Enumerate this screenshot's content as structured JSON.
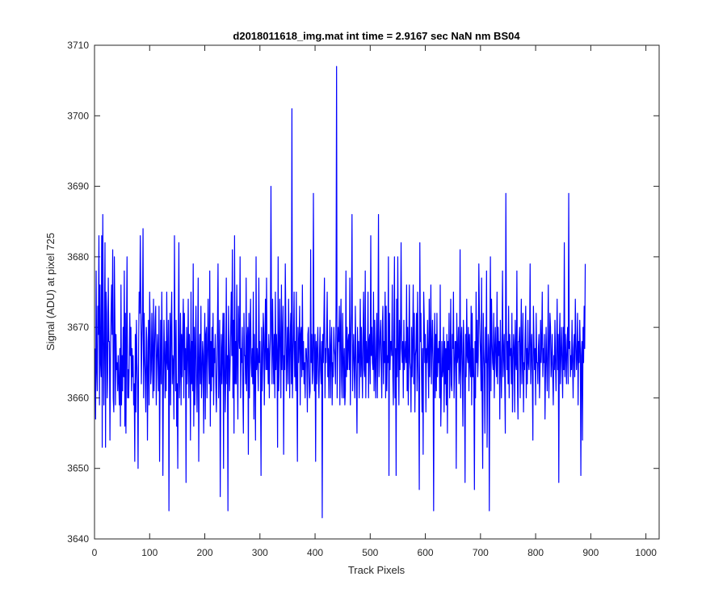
{
  "chart_data": {
    "type": "line",
    "title": "d2018011618_img.mat int time = 2.9167 sec  NaN nm BS04",
    "xlabel": "Track Pixels",
    "ylabel": "Signal (ADU) at pixel 725",
    "xlim": [
      0,
      1024
    ],
    "ylim": [
      3640,
      3710
    ],
    "xticks": [
      0,
      100,
      200,
      300,
      400,
      500,
      600,
      700,
      800,
      900,
      1000
    ],
    "yticks": [
      3640,
      3650,
      3660,
      3670,
      3680,
      3690,
      3700,
      3710
    ],
    "grid": false,
    "legend": "none",
    "line_color": "#0000ff",
    "series": [
      {
        "x_start": 1,
        "x_step": 1,
        "values": [
          3667,
          3657,
          3678,
          3664,
          3661,
          3673,
          3669,
          3683,
          3659,
          3676,
          3665,
          3663,
          3683,
          3653,
          3686,
          3670,
          3659,
          3668,
          3682,
          3653,
          3675,
          3672,
          3660,
          3664,
          3677,
          3668,
          3668,
          3654,
          3666,
          3672,
          3676,
          3669,
          3681,
          3660,
          3658,
          3680,
          3671,
          3659,
          3669,
          3664,
          3665,
          3661,
          3666,
          3662,
          3659,
          3667,
          3656,
          3676,
          3659,
          3666,
          3661,
          3670,
          3663,
          3678,
          3656,
          3672,
          3655,
          3669,
          3680,
          3660,
          3664,
          3660,
          3665,
          3672,
          3666,
          3670,
          3661,
          3667,
          3663,
          3666,
          3659,
          3662,
          3651,
          3669,
          3658,
          3671,
          3665,
          3662,
          3650,
          3667,
          3675,
          3672,
          3683,
          3674,
          3662,
          3668,
          3672,
          3684,
          3660,
          3672,
          3666,
          3663,
          3658,
          3670,
          3668,
          3654,
          3664,
          3671,
          3659,
          3675,
          3670,
          3662,
          3664,
          3672,
          3666,
          3660,
          3674,
          3661,
          3667,
          3671,
          3673,
          3659,
          3665,
          3669,
          3666,
          3661,
          3673,
          3651,
          3663,
          3671,
          3662,
          3675,
          3667,
          3649,
          3663,
          3671,
          3666,
          3660,
          3668,
          3661,
          3675,
          3665,
          3664,
          3671,
          3644,
          3665,
          3672,
          3659,
          3670,
          3675,
          3662,
          3666,
          3665,
          3657,
          3683,
          3668,
          3661,
          3671,
          3656,
          3662,
          3650,
          3668,
          3682,
          3660,
          3664,
          3672,
          3659,
          3669,
          3663,
          3669,
          3674,
          3660,
          3672,
          3664,
          3667,
          3648,
          3670,
          3662,
          3666,
          3674,
          3660,
          3669,
          3666,
          3654,
          3675,
          3662,
          3668,
          3661,
          3679,
          3656,
          3670,
          3659,
          3667,
          3673,
          3662,
          3658,
          3666,
          3677,
          3651,
          3665,
          3669,
          3662,
          3673,
          3660,
          3663,
          3668,
          3666,
          3655,
          3666,
          3672,
          3657,
          3669,
          3670,
          3660,
          3666,
          3674,
          3666,
          3662,
          3678,
          3656,
          3668,
          3661,
          3670,
          3663,
          3672,
          3659,
          3667,
          3665,
          3669,
          3662,
          3658,
          3664,
          3670,
          3679,
          3660,
          3665,
          3671,
          3646,
          3663,
          3669,
          3662,
          3667,
          3672,
          3650,
          3672,
          3666,
          3658,
          3663,
          3677,
          3662,
          3666,
          3644,
          3673,
          3667,
          3661,
          3665,
          3670,
          3675,
          3666,
          3681,
          3660,
          3671,
          3655,
          3683,
          3662,
          3668,
          3662,
          3676,
          3665,
          3657,
          3673,
          3669,
          3667,
          3680,
          3660,
          3667,
          3665,
          3670,
          3661,
          3655,
          3672,
          3666,
          3666,
          3662,
          3677,
          3661,
          3668,
          3670,
          3652,
          3672,
          3660,
          3669,
          3674,
          3665,
          3663,
          3667,
          3662,
          3675,
          3657,
          3669,
          3663,
          3654,
          3680,
          3664,
          3667,
          3665,
          3661,
          3677,
          3665,
          3668,
          3663,
          3649,
          3670,
          3661,
          3665,
          3672,
          3669,
          3659,
          3667,
          3674,
          3664,
          3677,
          3664,
          3667,
          3662,
          3669,
          3660,
          3666,
          3669,
          3690,
          3670,
          3662,
          3674,
          3667,
          3662,
          3669,
          3660,
          3675,
          3664,
          3669,
          3666,
          3653,
          3680,
          3661,
          3666,
          3674,
          3667,
          3660,
          3676,
          3664,
          3668,
          3673,
          3652,
          3666,
          3664,
          3679,
          3671,
          3661,
          3666,
          3670,
          3662,
          3674,
          3667,
          3660,
          3669,
          3672,
          3662,
          3701,
          3660,
          3665,
          3669,
          3675,
          3663,
          3668,
          3661,
          3675,
          3662,
          3651,
          3670,
          3665,
          3668,
          3673,
          3659,
          3669,
          3670,
          3663,
          3676,
          3664,
          3668,
          3662,
          3665,
          3660,
          3667,
          3667,
          3665,
          3658,
          3669,
          3670,
          3663,
          3660,
          3661,
          3681,
          3665,
          3669,
          3662,
          3664,
          3689,
          3667,
          3661,
          3669,
          3651,
          3668,
          3662,
          3667,
          3670,
          3663,
          3660,
          3666,
          3670,
          3664,
          3662,
          3668,
          3643,
          3669,
          3665,
          3671,
          3677,
          3660,
          3667,
          3665,
          3669,
          3675,
          3663,
          3667,
          3660,
          3666,
          3671,
          3660,
          3667,
          3670,
          3659,
          3665,
          3663,
          3670,
          3667,
          3666,
          3662,
          3673,
          3707,
          3660,
          3666,
          3670,
          3668,
          3673,
          3659,
          3669,
          3674,
          3663,
          3660,
          3672,
          3666,
          3660,
          3667,
          3659,
          3661,
          3678,
          3663,
          3670,
          3664,
          3668,
          3669,
          3664,
          3677,
          3659,
          3668,
          3672,
          3686,
          3661,
          3666,
          3669,
          3664,
          3660,
          3673,
          3667,
          3662,
          3655,
          3670,
          3665,
          3668,
          3660,
          3666,
          3674,
          3663,
          3670,
          3665,
          3660,
          3669,
          3675,
          3664,
          3663,
          3678,
          3660,
          3668,
          3665,
          3665,
          3675,
          3660,
          3668,
          3669,
          3662,
          3683,
          3666,
          3670,
          3665,
          3664,
          3675,
          3661,
          3671,
          3665,
          3660,
          3668,
          3672,
          3660,
          3668,
          3686,
          3663,
          3666,
          3669,
          3671,
          3664,
          3660,
          3670,
          3673,
          3662,
          3668,
          3665,
          3675,
          3660,
          3673,
          3661,
          3666,
          3665,
          3680,
          3649,
          3672,
          3664,
          3668,
          3668,
          3666,
          3676,
          3663,
          3659,
          3670,
          3680,
          3660,
          3667,
          3649,
          3674,
          3663,
          3680,
          3667,
          3659,
          3671,
          3664,
          3669,
          3682,
          3667,
          3665,
          3668,
          3660,
          3671,
          3664,
          3666,
          3668,
          3665,
          3676,
          3661,
          3670,
          3659,
          3666,
          3676,
          3665,
          3664,
          3658,
          3670,
          3663,
          3668,
          3676,
          3662,
          3672,
          3658,
          3666,
          3667,
          3672,
          3661,
          3675,
          3665,
          3662,
          3647,
          3682,
          3668,
          3672,
          3664,
          3658,
          3667,
          3652,
          3675,
          3671,
          3665,
          3669,
          3658,
          3667,
          3665,
          3671,
          3666,
          3660,
          3674,
          3663,
          3668,
          3676,
          3662,
          3667,
          3671,
          3665,
          3644,
          3665,
          3672,
          3660,
          3669,
          3661,
          3672,
          3663,
          3667,
          3665,
          3668,
          3660,
          3676,
          3656,
          3661,
          3668,
          3663,
          3664,
          3670,
          3658,
          3668,
          3662,
          3667,
          3659,
          3669,
          3655,
          3668,
          3664,
          3672,
          3660,
          3665,
          3674,
          3662,
          3661,
          3669,
          3667,
          3675,
          3660,
          3664,
          3668,
          3668,
          3650,
          3672,
          3665,
          3666,
          3670,
          3662,
          3664,
          3681,
          3660,
          3668,
          3670,
          3664,
          3656,
          3671,
          3667,
          3662,
          3648,
          3669,
          3663,
          3674,
          3666,
          3665,
          3670,
          3661,
          3669,
          3665,
          3663,
          3673,
          3659,
          3672,
          3663,
          3667,
          3662,
          3647,
          3668,
          3660,
          3675,
          3665,
          3671,
          3663,
          3666,
          3679,
          3672,
          3669,
          3666,
          3661,
          3677,
          3660,
          3650,
          3672,
          3667,
          3664,
          3655,
          3670,
          3665,
          3678,
          3653,
          3664,
          3669,
          3667,
          3644,
          3668,
          3680,
          3661,
          3674,
          3668,
          3665,
          3664,
          3672,
          3660,
          3667,
          3670,
          3665,
          3663,
          3675,
          3662,
          3670,
          3666,
          3668,
          3657,
          3671,
          3665,
          3660,
          3667,
          3678,
          3663,
          3666,
          3669,
          3662,
          3655,
          3689,
          3670,
          3664,
          3668,
          3662,
          3673,
          3660,
          3669,
          3666,
          3667,
          3662,
          3672,
          3658,
          3665,
          3669,
          3667,
          3658,
          3671,
          3665,
          3664,
          3678,
          3662,
          3657,
          3668,
          3668,
          3670,
          3660,
          3667,
          3674,
          3662,
          3666,
          3672,
          3658,
          3665,
          3664,
          3669,
          3673,
          3660,
          3667,
          3662,
          3671,
          3665,
          3664,
          3668,
          3679,
          3662,
          3666,
          3669,
          3663,
          3654,
          3673,
          3668,
          3664,
          3667,
          3659,
          3672,
          3665,
          3665,
          3662,
          3667,
          3669,
          3660,
          3664,
          3671,
          3665,
          3668,
          3675,
          3663,
          3667,
          3665,
          3669,
          3657,
          3664,
          3670,
          3665,
          3661,
          3668,
          3676,
          3660,
          3666,
          3672,
          3670,
          3663,
          3665,
          3669,
          3663,
          3659,
          3666,
          3664,
          3671,
          3665,
          3661,
          3667,
          3674,
          3664,
          3669,
          3648,
          3668,
          3672,
          3662,
          3666,
          3670,
          3665,
          3660,
          3670,
          3664,
          3682,
          3663,
          3669,
          3666,
          3662,
          3668,
          3670,
          3662,
          3689,
          3667,
          3668,
          3663,
          3666,
          3664,
          3671,
          3665,
          3660,
          3667,
          3669,
          3663,
          3674,
          3668,
          3664,
          3666,
          3672,
          3659,
          3668,
          3665,
          3671,
          3667,
          3649,
          3666,
          3668,
          3654,
          3670,
          3665,
          3673,
          3667,
          3679
        ]
      }
    ]
  }
}
